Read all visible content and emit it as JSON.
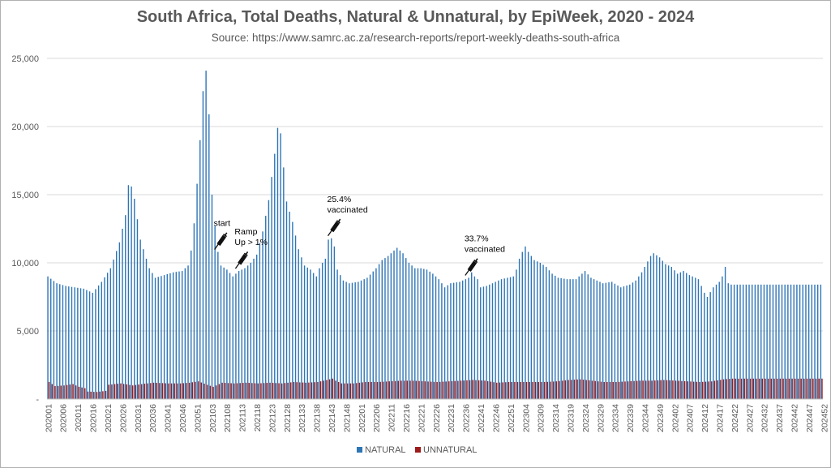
{
  "chart_data": {
    "type": "bar",
    "title": "South Africa, Total Deaths, Natural & Unnatural, by EpiWeek, 2020 - 2024",
    "subtitle": "Source: https://www.samrc.ac.za/research-reports/report-weekly-deaths-south-africa",
    "ylim": [
      0,
      25000
    ],
    "yticks": [
      "-",
      "5,000",
      "10,000",
      "15,000",
      "20,000",
      "25,000"
    ],
    "ytick_values": [
      0,
      5000,
      10000,
      15000,
      20000,
      25000
    ],
    "grid": true,
    "legend_position": "bottom",
    "series": [
      {
        "name": "NATURAL",
        "color": "#2e75b6"
      },
      {
        "name": "UNNATURAL",
        "color": "#9e1b1b"
      }
    ],
    "x_tick_labels": [
      "202001",
      "202006",
      "202011",
      "202016",
      "202021",
      "202026",
      "202031",
      "202036",
      "202041",
      "202046",
      "202051",
      "202103",
      "202108",
      "202113",
      "202118",
      "202123",
      "202128",
      "202133",
      "202138",
      "202143",
      "202148",
      "202201",
      "202206",
      "202211",
      "202216",
      "202221",
      "202226",
      "202231",
      "202236",
      "202241",
      "202246",
      "202251",
      "202304",
      "202309",
      "202314",
      "202319",
      "202324",
      "202329",
      "202334",
      "202339",
      "202344",
      "202349",
      "202402",
      "202407",
      "202412",
      "202417",
      "202422",
      "202427",
      "202432",
      "202437",
      "202442",
      "202447",
      "202452"
    ],
    "natural_anchors": [
      [
        0,
        9000
      ],
      [
        3,
        8500
      ],
      [
        6,
        8300
      ],
      [
        9,
        8200
      ],
      [
        12,
        8100
      ],
      [
        15,
        7800
      ],
      [
        18,
        8600
      ],
      [
        21,
        9600
      ],
      [
        24,
        11500
      ],
      [
        26,
        13500
      ],
      [
        27,
        15700
      ],
      [
        28,
        15600
      ],
      [
        29,
        14700
      ],
      [
        31,
        11700
      ],
      [
        34,
        9600
      ],
      [
        36,
        8900
      ],
      [
        39,
        9100
      ],
      [
        42,
        9300
      ],
      [
        45,
        9400
      ],
      [
        47,
        9800
      ],
      [
        48,
        10900
      ],
      [
        49,
        12900
      ],
      [
        50,
        15800
      ],
      [
        51,
        19000
      ],
      [
        52,
        22600
      ],
      [
        53,
        24100
      ],
      [
        54,
        20900
      ],
      [
        55,
        15000
      ],
      [
        56,
        12700
      ],
      [
        57,
        10800
      ],
      [
        58,
        9800
      ],
      [
        60,
        9500
      ],
      [
        62,
        9000
      ],
      [
        64,
        9400
      ],
      [
        66,
        9600
      ],
      [
        68,
        10000
      ],
      [
        70,
        10600
      ],
      [
        72,
        12300
      ],
      [
        74,
        14600
      ],
      [
        75,
        16300
      ],
      [
        76,
        18000
      ],
      [
        77,
        19900
      ],
      [
        78,
        19500
      ],
      [
        79,
        17000
      ],
      [
        80,
        14500
      ],
      [
        82,
        13000
      ],
      [
        84,
        11000
      ],
      [
        86,
        9800
      ],
      [
        88,
        9500
      ],
      [
        90,
        9000
      ],
      [
        91,
        9600
      ],
      [
        92,
        10000
      ],
      [
        93,
        10300
      ],
      [
        94,
        11700
      ],
      [
        95,
        11800
      ],
      [
        96,
        11200
      ],
      [
        97,
        9500
      ],
      [
        99,
        8700
      ],
      [
        101,
        8500
      ],
      [
        104,
        8600
      ],
      [
        107,
        8900
      ],
      [
        110,
        9600
      ],
      [
        112,
        10200
      ],
      [
        114,
        10500
      ],
      [
        116,
        10900
      ],
      [
        117,
        11100
      ],
      [
        119,
        10700
      ],
      [
        121,
        10000
      ],
      [
        123,
        9600
      ],
      [
        125,
        9600
      ],
      [
        127,
        9500
      ],
      [
        129,
        9200
      ],
      [
        131,
        8800
      ],
      [
        133,
        8200
      ],
      [
        135,
        8500
      ],
      [
        138,
        8600
      ],
      [
        141,
        8900
      ],
      [
        142,
        9300
      ],
      [
        143,
        9000
      ],
      [
        144,
        8800
      ],
      [
        145,
        8200
      ],
      [
        147,
        8300
      ],
      [
        150,
        8600
      ],
      [
        152,
        8800
      ],
      [
        154,
        8900
      ],
      [
        156,
        9000
      ],
      [
        157,
        9500
      ],
      [
        158,
        10300
      ],
      [
        159,
        10800
      ],
      [
        160,
        11200
      ],
      [
        161,
        10800
      ],
      [
        163,
        10200
      ],
      [
        165,
        10000
      ],
      [
        167,
        9700
      ],
      [
        169,
        9200
      ],
      [
        171,
        8900
      ],
      [
        174,
        8800
      ],
      [
        177,
        8800
      ],
      [
        180,
        9400
      ],
      [
        182,
        8900
      ],
      [
        184,
        8700
      ],
      [
        186,
        8500
      ],
      [
        189,
        8600
      ],
      [
        192,
        8200
      ],
      [
        195,
        8400
      ],
      [
        197,
        8700
      ],
      [
        199,
        9300
      ],
      [
        201,
        10100
      ],
      [
        202,
        10500
      ],
      [
        203,
        10700
      ],
      [
        205,
        10400
      ],
      [
        207,
        9900
      ],
      [
        209,
        9700
      ],
      [
        211,
        9200
      ],
      [
        213,
        9400
      ],
      [
        215,
        9100
      ],
      [
        218,
        8800
      ],
      [
        220,
        7800
      ],
      [
        221,
        7500
      ],
      [
        223,
        8200
      ],
      [
        225,
        8600
      ],
      [
        226,
        9000
      ],
      [
        227,
        9700
      ],
      [
        228,
        8500
      ],
      [
        229,
        8400
      ]
    ],
    "unnatural_anchors": [
      [
        0,
        1250
      ],
      [
        2,
        950
      ],
      [
        5,
        1000
      ],
      [
        8,
        1100
      ],
      [
        10,
        900
      ],
      [
        12,
        800
      ],
      [
        13,
        550
      ],
      [
        16,
        520
      ],
      [
        19,
        600
      ],
      [
        20,
        1050
      ],
      [
        24,
        1150
      ],
      [
        28,
        1000
      ],
      [
        31,
        1100
      ],
      [
        35,
        1200
      ],
      [
        40,
        1150
      ],
      [
        44,
        1150
      ],
      [
        47,
        1200
      ],
      [
        50,
        1300
      ],
      [
        53,
        1050
      ],
      [
        55,
        900
      ],
      [
        58,
        1200
      ],
      [
        62,
        1150
      ],
      [
        66,
        1200
      ],
      [
        70,
        1150
      ],
      [
        74,
        1200
      ],
      [
        78,
        1150
      ],
      [
        82,
        1250
      ],
      [
        86,
        1200
      ],
      [
        90,
        1250
      ],
      [
        93,
        1400
      ],
      [
        95,
        1500
      ],
      [
        96,
        1350
      ],
      [
        98,
        1150
      ],
      [
        102,
        1150
      ],
      [
        106,
        1250
      ],
      [
        110,
        1250
      ],
      [
        114,
        1300
      ],
      [
        118,
        1350
      ],
      [
        122,
        1350
      ],
      [
        126,
        1300
      ],
      [
        130,
        1250
      ],
      [
        134,
        1300
      ],
      [
        138,
        1350
      ],
      [
        142,
        1400
      ],
      [
        146,
        1350
      ],
      [
        150,
        1200
      ],
      [
        154,
        1250
      ],
      [
        158,
        1250
      ],
      [
        162,
        1250
      ],
      [
        166,
        1250
      ],
      [
        170,
        1300
      ],
      [
        174,
        1400
      ],
      [
        178,
        1450
      ],
      [
        182,
        1350
      ],
      [
        186,
        1250
      ],
      [
        190,
        1250
      ],
      [
        194,
        1300
      ],
      [
        198,
        1350
      ],
      [
        202,
        1350
      ],
      [
        206,
        1400
      ],
      [
        210,
        1350
      ],
      [
        214,
        1300
      ],
      [
        218,
        1250
      ],
      [
        222,
        1300
      ],
      [
        226,
        1450
      ],
      [
        229,
        1500
      ]
    ],
    "annotations": [
      {
        "lines": [
          "start"
        ],
        "week_index": 57
      },
      {
        "lines": [
          "Ramp",
          "Up > 1%"
        ],
        "week_index": 64
      },
      {
        "lines": [
          "25.4%",
          "vaccinated"
        ],
        "week_index": 95
      },
      {
        "lines": [
          "33.7%",
          "vaccinated"
        ],
        "week_index": 141
      }
    ]
  },
  "icons": {
    "syringe": "syringe-icon"
  }
}
